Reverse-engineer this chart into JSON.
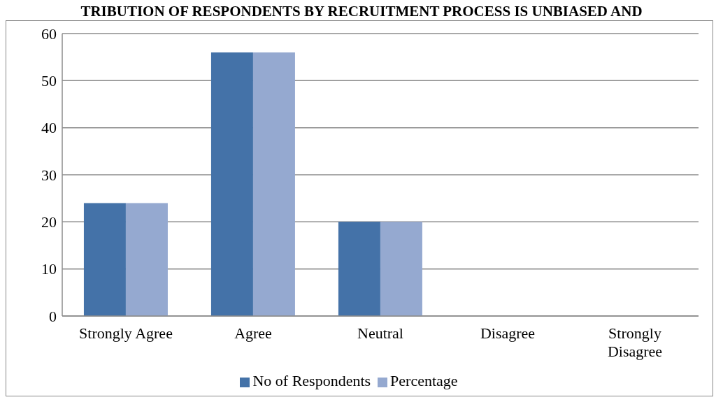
{
  "chart_data": {
    "type": "bar",
    "title": "TRIBUTION OF RESPONDENTS BY RECRUITMENT PROCESS IS UNBIASED AND",
    "categories": [
      "Strongly Agree",
      "Agree",
      "Neutral",
      "Disagree",
      "Strongly Disagree"
    ],
    "series": [
      {
        "name": "No of Respondents",
        "color": "#4472a8",
        "values": [
          24,
          56,
          20,
          0,
          0
        ]
      },
      {
        "name": "Percentage",
        "color": "#95a9d0",
        "values": [
          24,
          56,
          20,
          0,
          0
        ]
      }
    ],
    "ylim": [
      0,
      60
    ],
    "yticks": [
      0,
      10,
      20,
      30,
      40,
      50,
      60
    ],
    "grid": "y",
    "legend": "bottom"
  }
}
